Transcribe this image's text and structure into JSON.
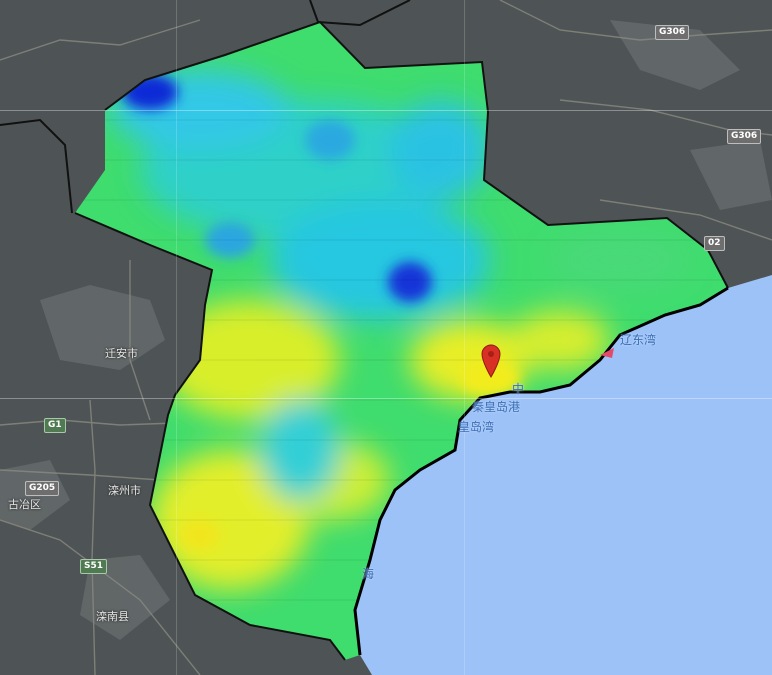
{
  "map": {
    "place_labels": [
      {
        "id": "qian-an",
        "text": "迁安市"
      },
      {
        "id": "luanzhou",
        "text": "滦州市"
      },
      {
        "id": "guye",
        "text": "古冶区"
      },
      {
        "id": "luannan",
        "text": "滦南县"
      }
    ],
    "sea_labels": [
      {
        "id": "qinhuangdao-port",
        "text": "秦皇岛港"
      },
      {
        "id": "qinhuangdao-bay",
        "text": "皇岛湾"
      },
      {
        "id": "liaodong-bay",
        "text": "辽东湾"
      },
      {
        "id": "hai-char",
        "text": "海"
      },
      {
        "id": "zhong-char",
        "text": "中"
      }
    ],
    "road_shields": [
      {
        "id": "g306-top",
        "text": "G306",
        "style": "national"
      },
      {
        "id": "g306-right",
        "text": "G306",
        "style": "national"
      },
      {
        "id": "g102",
        "text": "02",
        "style": "national"
      },
      {
        "id": "g1",
        "text": "G1",
        "style": "expressway"
      },
      {
        "id": "g205",
        "text": "G205",
        "style": "national"
      },
      {
        "id": "s51",
        "text": "S51",
        "style": "expressway"
      }
    ],
    "marker": {
      "color": "#d93025",
      "icon": "map-pin-icon"
    },
    "colors": {
      "sea": "#9dc2f7",
      "land": "#4e5455",
      "boundary": "#111111",
      "heat_low": "#0b2bd6",
      "heat_mid_low": "#27c7e0",
      "heat_mid": "#3fdc6e",
      "heat_high": "#f2ec1e"
    }
  }
}
